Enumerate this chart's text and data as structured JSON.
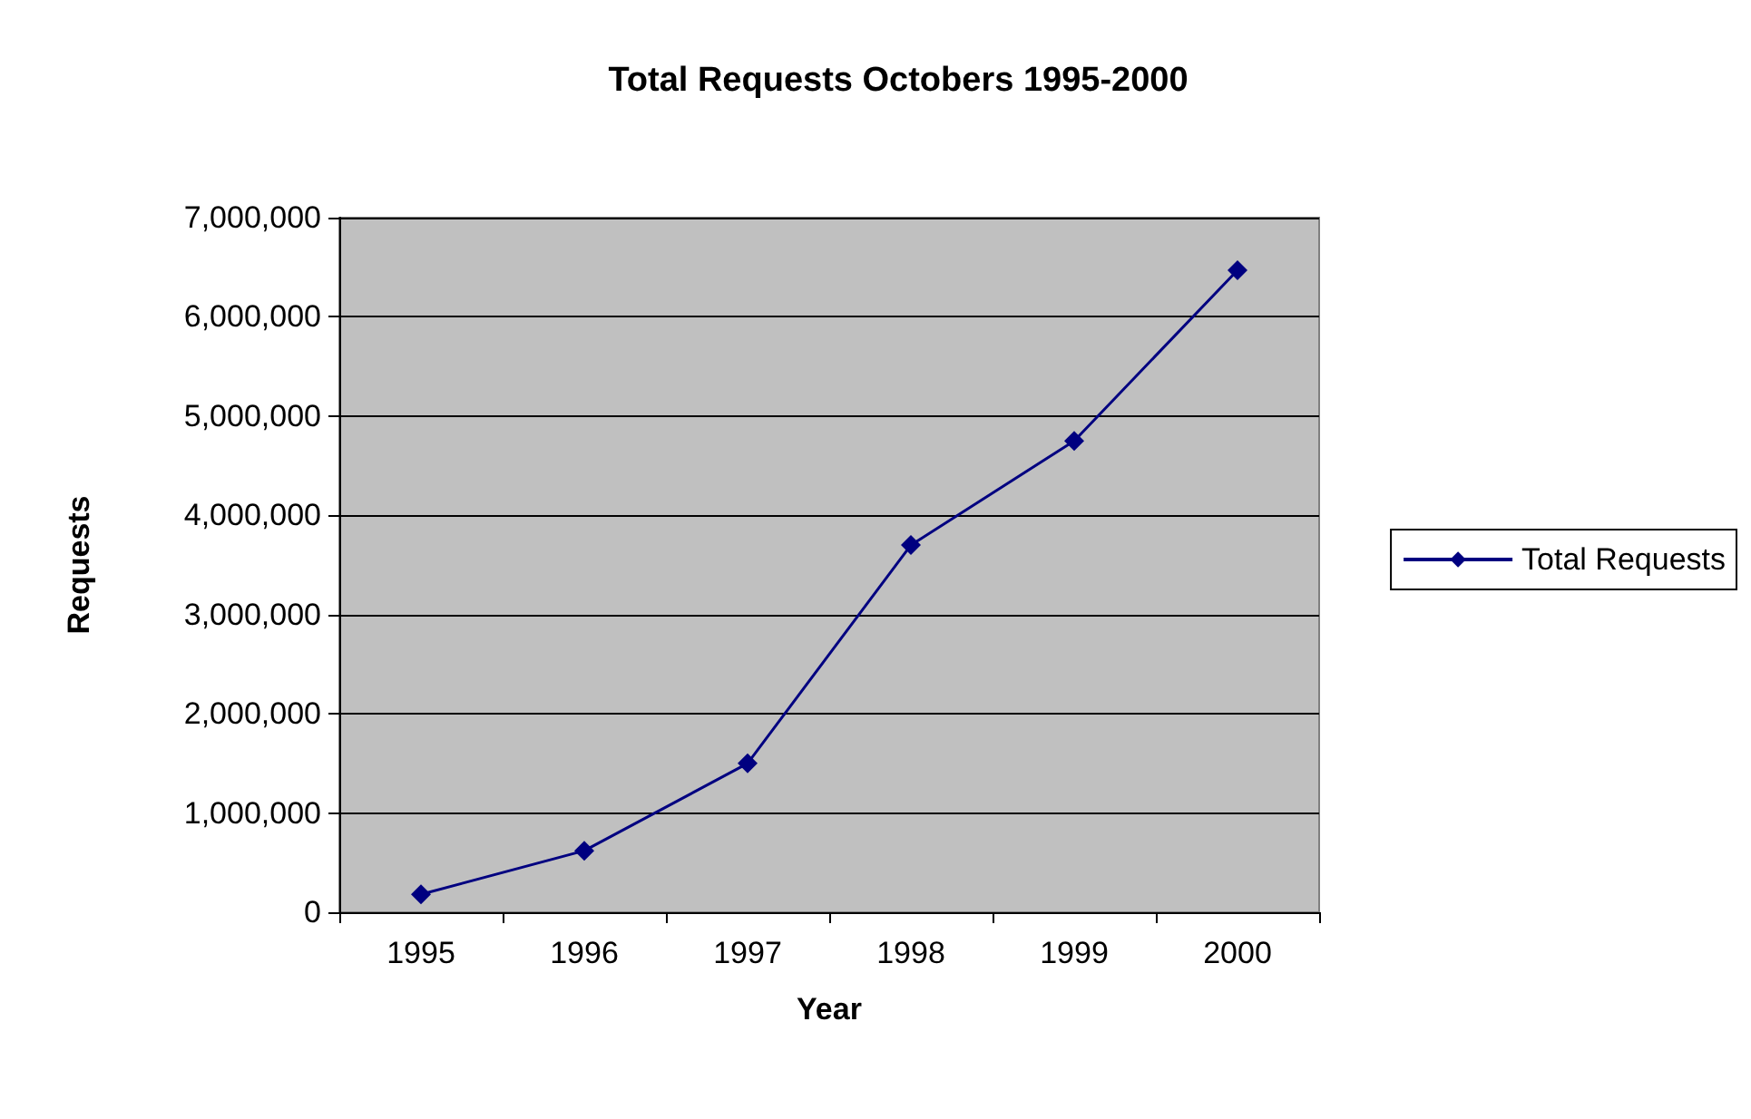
{
  "chart_data": {
    "type": "line",
    "title": "Total Requests Octobers 1995-2000",
    "xlabel": "Year",
    "ylabel": "Requests",
    "categories": [
      "1995",
      "1996",
      "1997",
      "1998",
      "1999",
      "2000"
    ],
    "series": [
      {
        "name": "Total Requests",
        "color": "#000080",
        "values": [
          180000,
          620000,
          1500000,
          3700000,
          4750000,
          6470000
        ]
      }
    ],
    "ylim": [
      0,
      7000000
    ],
    "yticks": [
      0,
      {
        "value": 1000000,
        "label": "1,000,000"
      },
      {
        "value": 2000000,
        "label": "2,000,000"
      },
      {
        "value": 3000000,
        "label": "3,000,000"
      },
      {
        "value": 4000000,
        "label": "4,000,000"
      },
      {
        "value": 5000000,
        "label": "5,000,000"
      },
      {
        "value": 6000000,
        "label": "6,000,000"
      },
      {
        "value": 7000000,
        "label": "7,000,000"
      }
    ],
    "grid": "y",
    "legend": "right",
    "marker": "diamond",
    "line_style": "solid"
  }
}
